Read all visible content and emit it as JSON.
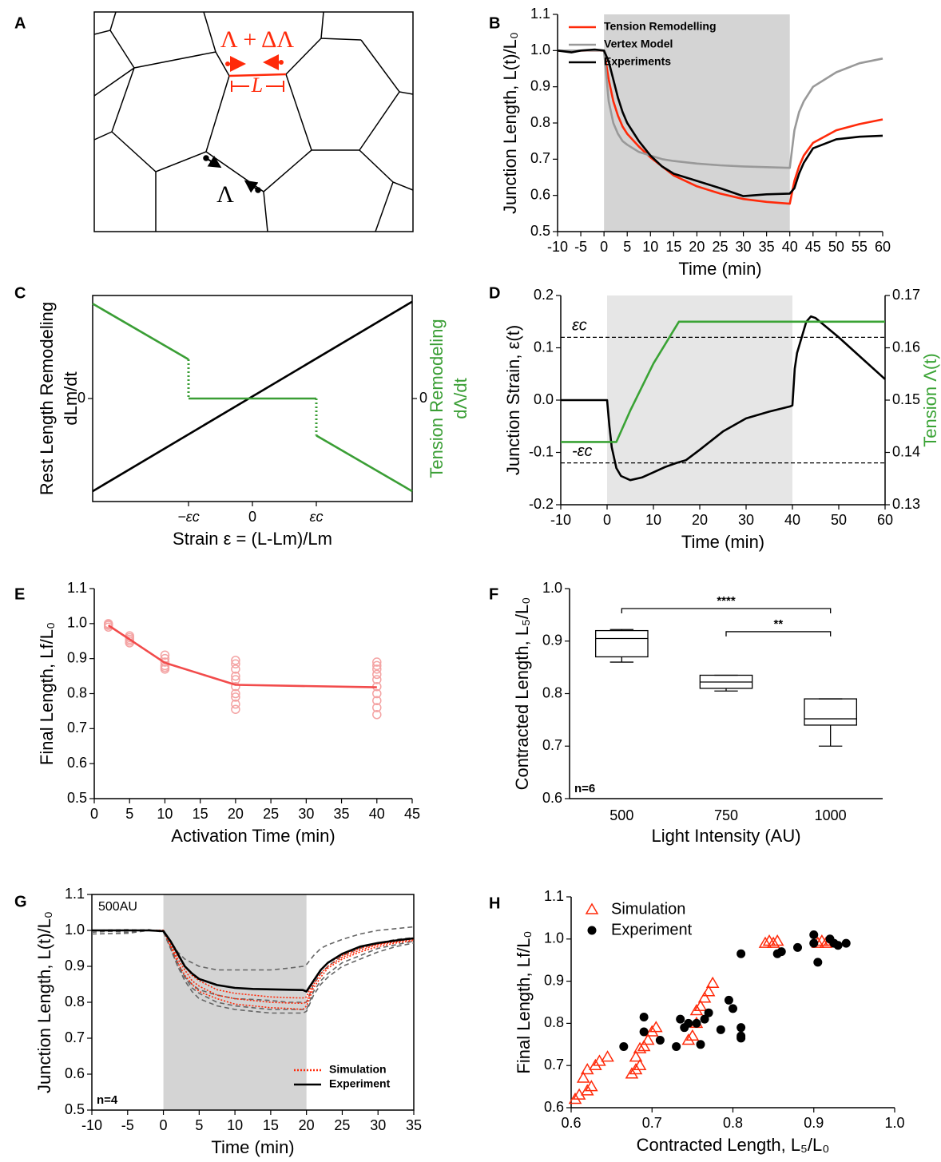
{
  "chart_data": [
    {
      "panel": "A",
      "type": "diagram",
      "annotations": [
        "Λ + ΔΛ",
        "L",
        "Λ"
      ]
    },
    {
      "panel": "B",
      "type": "line",
      "xlabel": "Time (min)",
      "ylabel": "Junction Length, L(t)/L₀",
      "x": [
        -10,
        -7,
        -5,
        -2,
        0,
        1,
        2,
        3,
        4,
        5,
        7.5,
        10,
        12.5,
        15,
        20,
        25,
        30,
        35,
        40,
        41,
        42,
        43,
        45,
        50,
        55,
        60
      ],
      "series": [
        {
          "name": "Tension Remodelling",
          "color": "#ff2a0a",
          "values": [
            1,
            1,
            1,
            1,
            1,
            0.92,
            0.86,
            0.82,
            0.79,
            0.77,
            0.735,
            0.705,
            0.68,
            0.655,
            0.625,
            0.605,
            0.59,
            0.582,
            0.577,
            0.64,
            0.68,
            0.71,
            0.745,
            0.78,
            0.797,
            0.81
          ]
        },
        {
          "name": "Vertex Model",
          "color": "#999999",
          "values": [
            1,
            1,
            1,
            1,
            1,
            0.86,
            0.8,
            0.77,
            0.75,
            0.74,
            0.72,
            0.71,
            0.7,
            0.695,
            0.688,
            0.683,
            0.68,
            0.678,
            0.676,
            0.78,
            0.83,
            0.86,
            0.9,
            0.94,
            0.965,
            0.978
          ]
        },
        {
          "name": "Experiments",
          "color": "#000000",
          "values": [
            1,
            0.995,
            1,
            1.003,
            1,
            0.97,
            0.92,
            0.87,
            0.83,
            0.8,
            0.75,
            0.71,
            0.68,
            0.66,
            0.64,
            0.62,
            0.598,
            0.603,
            0.605,
            0.62,
            0.66,
            0.69,
            0.73,
            0.755,
            0.762,
            0.765
          ]
        }
      ],
      "xlim": [
        -10,
        60
      ],
      "ylim": [
        0.5,
        1.1
      ],
      "xticks": [
        -10,
        -5,
        0,
        5,
        10,
        15,
        20,
        25,
        30,
        35,
        40,
        45,
        50,
        55,
        60
      ],
      "yticks": [
        0.5,
        0.6,
        0.7,
        0.8,
        0.9,
        {
          "value": 1,
          "label": "1.0"
        },
        1.1
      ],
      "shade": [
        0,
        40
      ],
      "shade_color": "#d4d4d4",
      "legend": "upper left"
    },
    {
      "panel": "C",
      "type": "schematic",
      "xlabel": "Strain ε = (L-Lm)/Lm",
      "ylabel": [
        "Rest Length Remodeling",
        "dLm/dt"
      ],
      "y2label": [
        "Tension Remodeling",
        "dΛ/dt"
      ],
      "xlim": [
        -2.5,
        2.5
      ],
      "ylim": [
        -1,
        1
      ],
      "y2lim": [
        -1,
        1
      ],
      "xticks": [
        {
          "value": -1,
          "label": "−εc"
        },
        0,
        {
          "value": 1,
          "label": "εc"
        }
      ],
      "yticks": [
        0
      ],
      "y2ticks": [
        0
      ],
      "series": [
        {
          "color": "#000000",
          "x": [
            -2.5,
            2.5
          ],
          "values": [
            -0.9,
            0.94
          ]
        },
        {
          "color": "#3a9e35",
          "axis": "y2",
          "x": [
            -2.5,
            -1,
            -1,
            1,
            1,
            2.5
          ],
          "values": [
            0.92,
            0.38,
            0,
            0,
            -0.36,
            -0.9
          ]
        }
      ]
    },
    {
      "panel": "D",
      "type": "line",
      "xlabel": "Time (min)",
      "ylabel": "Junction Strain, ε(t)",
      "y2label": "Tension Λ(t)",
      "series": [
        {
          "color": "#000000",
          "x": [
            -10,
            0,
            0.5,
            1,
            2,
            3,
            5,
            7.5,
            10,
            12.5,
            15,
            17,
            20,
            25,
            30,
            35,
            39.5,
            40,
            40.5,
            41,
            42,
            43,
            44,
            45,
            50,
            55,
            60
          ],
          "values": [
            0,
            0,
            -0.05,
            -0.09,
            -0.13,
            -0.145,
            -0.153,
            -0.148,
            -0.138,
            -0.128,
            -0.12,
            -0.115,
            -0.095,
            -0.06,
            -0.035,
            -0.022,
            -0.012,
            -0.01,
            0.06,
            0.09,
            0.12,
            0.15,
            0.16,
            0.157,
            0.12,
            0.08,
            0.04
          ]
        },
        {
          "color": "#3aa335",
          "axis": "y2",
          "x": [
            -10,
            2,
            5,
            10,
            15.5,
            60
          ],
          "values": [
            0.142,
            0.142,
            0.148,
            0.157,
            0.165,
            0.165
          ]
        }
      ],
      "xlim": [
        -10,
        60
      ],
      "ylim": [
        -0.2,
        0.2
      ],
      "y2lim": [
        0.13,
        0.17
      ],
      "xticks": [
        -10,
        0,
        10,
        20,
        30,
        40,
        50,
        60
      ],
      "yticks": [
        -0.2,
        -0.1,
        {
          "value": 0,
          "label": "0.0"
        },
        0.1,
        0.2
      ],
      "y2ticks": [
        0.13,
        0.14,
        0.15,
        0.16,
        0.17
      ],
      "thresholds": [
        {
          "value": 0.12,
          "label": "εc"
        },
        {
          "value": -0.12,
          "label": "-εc"
        }
      ],
      "shade": [
        0,
        40
      ],
      "shade_color": "#e6e6e6"
    },
    {
      "panel": "E",
      "type": "line",
      "xlabel": "Activation Time (min)",
      "ylabel": "Final Length, Lf/L₀",
      "x": [
        2,
        5,
        10,
        20,
        40
      ],
      "series": [
        {
          "color": "#f24b4b",
          "values": [
            0.995,
            0.955,
            0.888,
            0.825,
            0.818
          ]
        }
      ],
      "points": {
        "color": "#f4a3a3",
        "x": [
          2,
          2,
          2,
          2,
          5,
          5,
          5,
          5,
          5,
          10,
          10,
          10,
          10,
          10,
          10,
          20,
          20,
          20,
          20,
          20,
          20,
          20,
          20,
          20,
          20,
          40,
          40,
          40,
          40,
          40,
          40,
          40,
          40,
          40,
          40
        ],
        "values": [
          0.99,
          1.0,
          0.995,
          0.998,
          0.945,
          0.95,
          0.955,
          0.96,
          0.965,
          0.87,
          0.875,
          0.88,
          0.89,
          0.9,
          0.91,
          0.755,
          0.77,
          0.79,
          0.8,
          0.82,
          0.84,
          0.85,
          0.87,
          0.885,
          0.895,
          0.74,
          0.76,
          0.78,
          0.8,
          0.82,
          0.84,
          0.855,
          0.87,
          0.88,
          0.89
        ]
      },
      "xlim": [
        0,
        45
      ],
      "ylim": [
        0.5,
        1.1
      ],
      "xticks": [
        0,
        5,
        10,
        15,
        20,
        25,
        30,
        35,
        40,
        45
      ],
      "yticks": [
        0.5,
        0.6,
        0.7,
        0.8,
        0.9,
        {
          "value": 1,
          "label": "1.0"
        },
        1.1
      ]
    },
    {
      "panel": "F",
      "type": "box",
      "xlabel": "Light Intensity (AU)",
      "ylabel": "Contracted Length, L₅/L₀",
      "categories": [
        "500",
        "750",
        "1000"
      ],
      "boxes": [
        {
          "low": 0.86,
          "q1": 0.87,
          "median": 0.905,
          "q3": 0.92,
          "high": 0.922
        },
        {
          "low": 0.805,
          "q1": 0.81,
          "median": 0.822,
          "q3": 0.835,
          "high": 0.835
        },
        {
          "low": 0.7,
          "q1": 0.74,
          "median": 0.752,
          "q3": 0.79,
          "high": 0.79
        }
      ],
      "ylim": [
        0.6,
        1.0
      ],
      "yticks": [
        0.6,
        0.7,
        0.8,
        0.9,
        {
          "value": 1,
          "label": "1.0"
        }
      ],
      "brackets": [
        {
          "from": "500",
          "to": "1000",
          "y": 0.962,
          "label": "****"
        },
        {
          "from": "750",
          "to": "1000",
          "y": 0.918,
          "label": "**"
        }
      ],
      "note": "n=6"
    },
    {
      "panel": "G",
      "type": "line",
      "xlabel": "Time (min)",
      "ylabel": "Junction Length, L(t)/L₀",
      "x": [
        -10,
        -5,
        -2,
        0,
        1,
        2,
        3,
        4,
        5,
        7.5,
        10,
        12.5,
        15,
        17.5,
        19.5,
        20,
        21,
        22,
        23,
        25,
        27.5,
        30,
        32.5,
        35
      ],
      "series": [
        {
          "color": "#666666",
          "style": "dashed",
          "values": [
            1.0,
            1.002,
            1.0,
            1.0,
            0.97,
            0.94,
            0.92,
            0.91,
            0.9,
            0.89,
            0.89,
            0.89,
            0.89,
            0.895,
            0.9,
            0.905,
            0.93,
            0.95,
            0.96,
            0.975,
            0.99,
            1.0,
            1.005,
            1.01
          ]
        },
        {
          "color": "#666666",
          "style": "dashed",
          "values": [
            0.995,
            1.0,
            1.002,
            0.995,
            0.95,
            0.9,
            0.87,
            0.85,
            0.835,
            0.82,
            0.81,
            0.808,
            0.805,
            0.8,
            0.8,
            0.8,
            0.85,
            0.88,
            0.9,
            0.93,
            0.95,
            0.965,
            0.975,
            0.98
          ]
        },
        {
          "color": "#666666",
          "style": "dashed",
          "values": [
            1.0,
            0.995,
            1.0,
            1.0,
            0.955,
            0.91,
            0.87,
            0.84,
            0.825,
            0.8,
            0.79,
            0.785,
            0.78,
            0.78,
            0.78,
            0.78,
            0.83,
            0.86,
            0.88,
            0.91,
            0.93,
            0.95,
            0.96,
            0.97
          ]
        },
        {
          "color": "#666666",
          "style": "dashed",
          "values": [
            0.99,
            0.992,
            1.0,
            0.998,
            0.95,
            0.9,
            0.86,
            0.83,
            0.81,
            0.79,
            0.78,
            0.775,
            0.77,
            0.77,
            0.77,
            0.775,
            0.82,
            0.85,
            0.87,
            0.9,
            0.92,
            0.94,
            0.955,
            0.965
          ]
        },
        {
          "name": "Simulation",
          "color": "#ff2a0a",
          "style": "dotted",
          "values": [
            1,
            1,
            1,
            1,
            0.96,
            0.92,
            0.89,
            0.86,
            0.845,
            0.82,
            0.81,
            0.805,
            0.8,
            0.798,
            0.797,
            0.8,
            0.85,
            0.88,
            0.9,
            0.925,
            0.945,
            0.96,
            0.968,
            0.975
          ]
        },
        {
          "color": "#ff2a0a",
          "style": "dotted",
          "values": [
            1,
            1,
            1,
            1,
            0.955,
            0.91,
            0.875,
            0.85,
            0.83,
            0.81,
            0.795,
            0.79,
            0.785,
            0.783,
            0.78,
            0.79,
            0.84,
            0.87,
            0.895,
            0.92,
            0.94,
            0.955,
            0.965,
            0.972
          ]
        },
        {
          "color": "#ff2a0a",
          "style": "dotted",
          "values": [
            1,
            1,
            1,
            1,
            0.965,
            0.93,
            0.9,
            0.875,
            0.86,
            0.835,
            0.825,
            0.82,
            0.815,
            0.813,
            0.812,
            0.815,
            0.86,
            0.89,
            0.91,
            0.93,
            0.95,
            0.962,
            0.97,
            0.978
          ]
        },
        {
          "name": "Experiment",
          "color": "#000000",
          "values": [
            1.0,
            1.0,
            1.0,
            0.998,
            0.97,
            0.935,
            0.9,
            0.88,
            0.865,
            0.848,
            0.84,
            0.837,
            0.836,
            0.835,
            0.834,
            0.83,
            0.86,
            0.89,
            0.91,
            0.935,
            0.955,
            0.965,
            0.972,
            0.978
          ]
        }
      ],
      "xlim": [
        -10,
        35
      ],
      "ylim": [
        0.5,
        1.1
      ],
      "xticks": [
        -10,
        -5,
        0,
        5,
        10,
        15,
        20,
        25,
        30,
        35
      ],
      "yticks": [
        0.5,
        0.6,
        0.7,
        0.8,
        0.9,
        {
          "value": 1,
          "label": "1.0"
        },
        1.1
      ],
      "shade": [
        0,
        20
      ],
      "shade_color": "#d4d4d4",
      "legend": "lower right",
      "annotation": "500AU",
      "note": "n=4"
    },
    {
      "panel": "H",
      "type": "scatter",
      "xlabel": "Contracted Length, L₅/L₀",
      "ylabel": "Final Length, Lf/L₀",
      "series": [
        {
          "name": "Simulation",
          "color": "#ff2a0a",
          "marker": "triangle",
          "x": [
            0.605,
            0.61,
            0.62,
            0.625,
            0.615,
            0.62,
            0.63,
            0.635,
            0.645,
            0.675,
            0.68,
            0.685,
            0.68,
            0.685,
            0.69,
            0.695,
            0.7,
            0.705,
            0.745,
            0.75,
            0.755,
            0.755,
            0.76,
            0.765,
            0.77,
            0.775,
            0.84,
            0.845,
            0.85,
            0.855,
            0.905,
            0.91,
            0.915,
            0.92
          ],
          "values": [
            0.62,
            0.63,
            0.64,
            0.65,
            0.67,
            0.69,
            0.7,
            0.71,
            0.72,
            0.68,
            0.69,
            0.7,
            0.72,
            0.74,
            0.745,
            0.76,
            0.78,
            0.79,
            0.76,
            0.77,
            0.8,
            0.83,
            0.84,
            0.86,
            0.875,
            0.895,
            0.99,
            0.995,
            0.99,
            0.995,
            0.99,
            0.995,
            0.99,
            0.995
          ]
        },
        {
          "name": "Experiment",
          "color": "#000000",
          "marker": "circle",
          "x": [
            0.665,
            0.69,
            0.69,
            0.71,
            0.73,
            0.735,
            0.74,
            0.745,
            0.76,
            0.755,
            0.765,
            0.77,
            0.785,
            0.795,
            0.8,
            0.81,
            0.81,
            0.81,
            0.81,
            0.855,
            0.86,
            0.88,
            0.9,
            0.9,
            0.905,
            0.92,
            0.925,
            0.93,
            0.94
          ],
          "values": [
            0.745,
            0.815,
            0.78,
            0.76,
            0.745,
            0.81,
            0.79,
            0.8,
            0.75,
            0.8,
            0.81,
            0.825,
            0.785,
            0.855,
            0.835,
            0.79,
            0.77,
            0.765,
            0.965,
            0.965,
            0.97,
            0.98,
            1.01,
            0.99,
            0.945,
            1.0,
            0.99,
            0.985,
            0.99
          ]
        }
      ],
      "xlim": [
        0.6,
        1.0
      ],
      "ylim": [
        0.6,
        1.1
      ],
      "xticks": [
        0.6,
        0.7,
        0.8,
        0.9,
        {
          "value": 1,
          "label": "1.0"
        }
      ],
      "yticks": [
        0.6,
        0.7,
        0.8,
        0.9,
        {
          "value": 1,
          "label": "1.0"
        },
        1.1
      ],
      "legend": "upper left"
    }
  ]
}
